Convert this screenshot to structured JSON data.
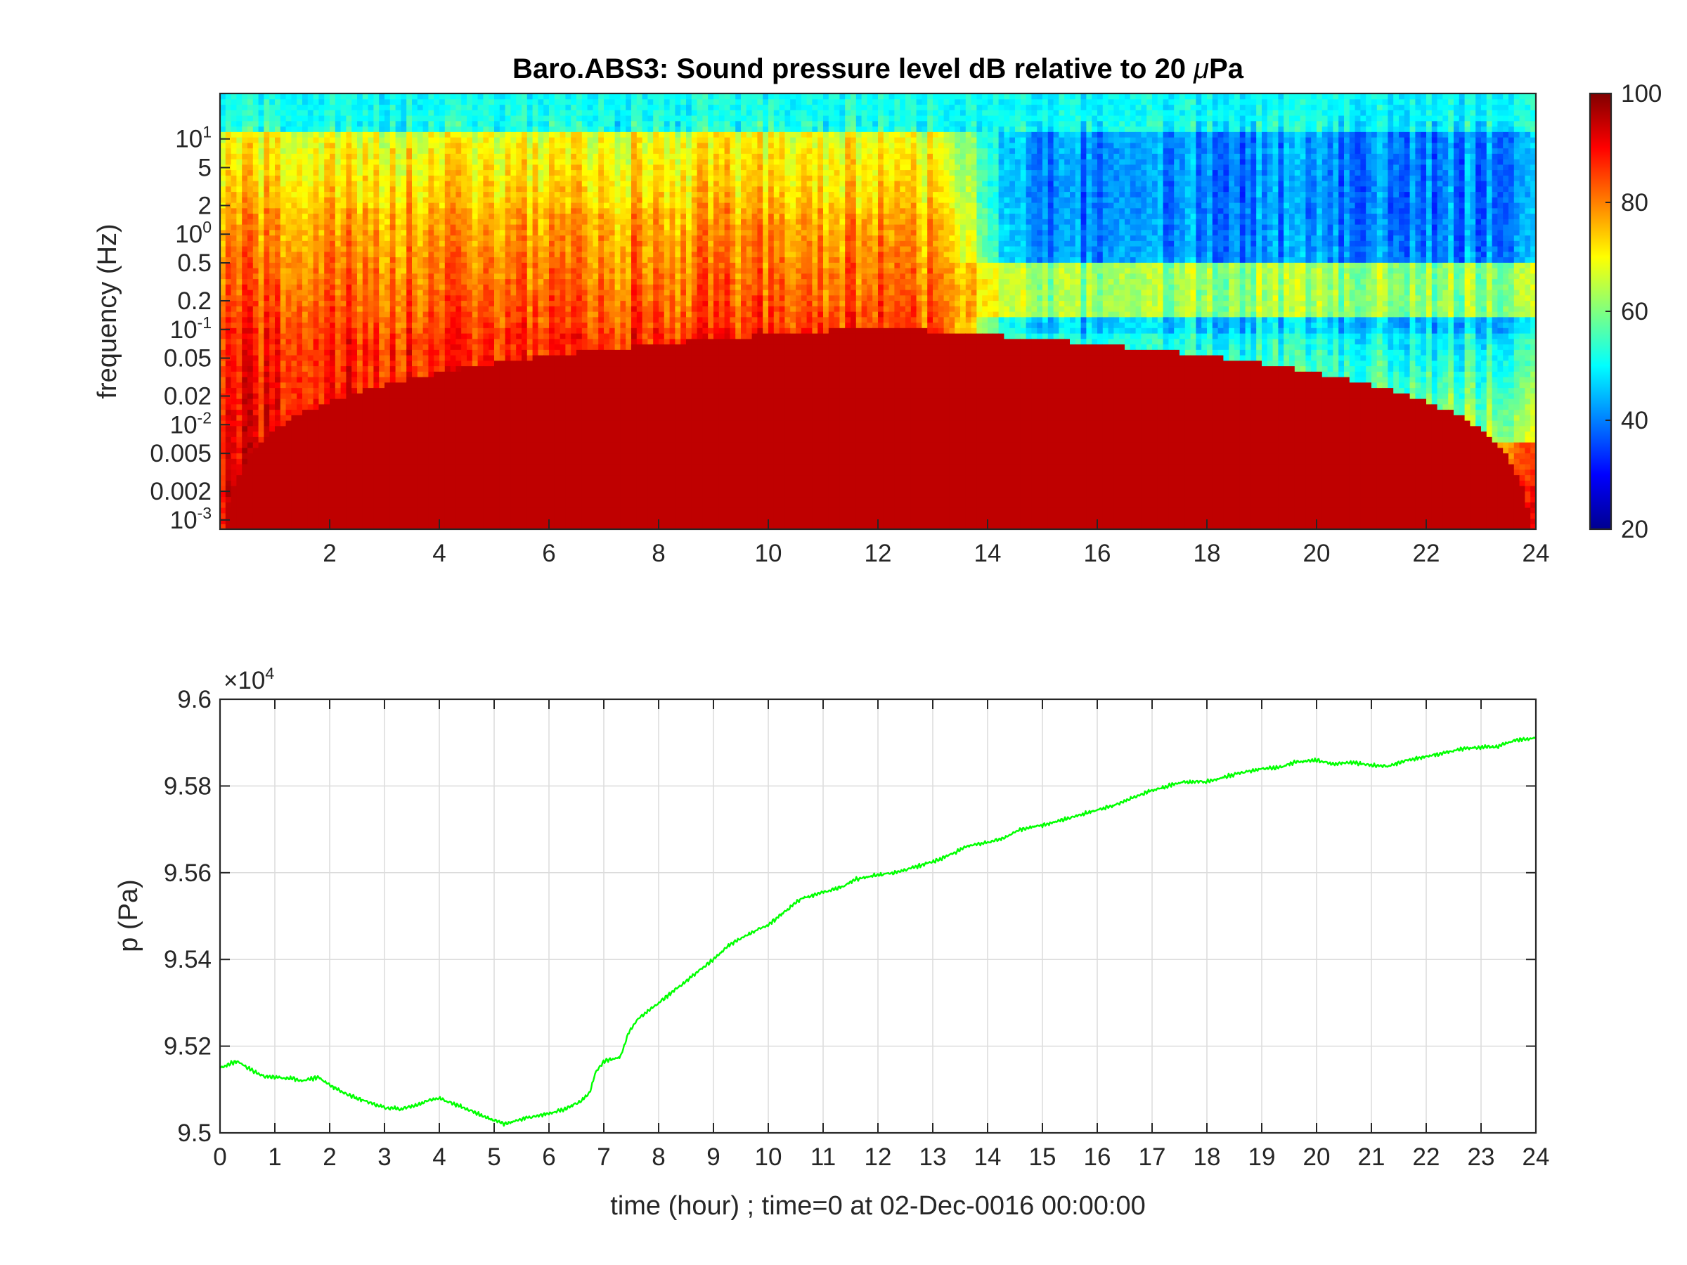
{
  "chart_data": [
    {
      "type": "heatmap",
      "title": "Baro.ABS3: Sound pressure level dB relative to 20 μPa",
      "title_parts": {
        "before": "Baro.ABS3: Sound pressure level dB relative to 20 ",
        "mu": "μ",
        "after": "Pa"
      },
      "xlabel": "",
      "ylabel": "frequency (Hz)",
      "xlim": [
        0,
        24
      ],
      "ylim": [
        0.0008,
        30
      ],
      "y_scale": "log",
      "x_ticks": [
        2,
        4,
        6,
        8,
        10,
        12,
        14,
        16,
        18,
        20,
        22,
        24
      ],
      "x_tick_labels": [
        "2",
        "4",
        "6",
        "8",
        "10",
        "12",
        "14",
        "16",
        "18",
        "20",
        "22",
        "24"
      ],
      "y_ticks": [
        {
          "value": 0.001,
          "base": "10",
          "exp": "-3"
        },
        {
          "value": 0.002,
          "label": "0.002"
        },
        {
          "value": 0.005,
          "label": "0.005"
        },
        {
          "value": 0.01,
          "base": "10",
          "exp": "-2"
        },
        {
          "value": 0.02,
          "label": "0.02"
        },
        {
          "value": 0.05,
          "label": "0.05"
        },
        {
          "value": 0.1,
          "base": "10",
          "exp": "-1"
        },
        {
          "value": 0.2,
          "label": "0.2"
        },
        {
          "value": 0.5,
          "label": "0.5"
        },
        {
          "value": 1,
          "base": "10",
          "exp": "0"
        },
        {
          "value": 2,
          "label": "2"
        },
        {
          "value": 5,
          "label": "5"
        },
        {
          "value": 10,
          "base": "10",
          "exp": "1"
        }
      ],
      "colormap": "jet",
      "clim": [
        20,
        100
      ],
      "colorbar_ticks": [
        20,
        40,
        60,
        80,
        100
      ],
      "colorbar_tick_labels": [
        "20",
        "40",
        "60",
        "80",
        "100"
      ],
      "colorbar_placement": "right",
      "regimes": [
        {
          "x_start": 0,
          "x_end": 13.8,
          "description": "high energy: 80-95 dB below 0.1 Hz, 65-75 dB near 1-5 Hz, about 50 dB above 10 Hz"
        },
        {
          "x_start": 13.8,
          "x_end": 24,
          "description": "quiet: about 40 dB in 0.5-5 Hz band, 60-65 dB band near 0.15-0.3 Hz, 75-90 dB below 0.005 Hz"
        }
      ]
    },
    {
      "type": "line",
      "title": "",
      "xlabel": "time (hour) ; time=0 at 02-Dec-0016 00:00:00",
      "ylabel": "p (Pa)",
      "xlim": [
        0,
        24
      ],
      "ylim": [
        95000,
        96000
      ],
      "y_multiplier": {
        "base": "10",
        "exp": "4"
      },
      "x_ticks": [
        0,
        1,
        2,
        3,
        4,
        5,
        6,
        7,
        8,
        9,
        10,
        11,
        12,
        13,
        14,
        15,
        16,
        17,
        18,
        19,
        20,
        21,
        22,
        23,
        24
      ],
      "x_tick_labels": [
        "0",
        "1",
        "2",
        "3",
        "4",
        "5",
        "6",
        "7",
        "8",
        "9",
        "10",
        "11",
        "12",
        "13",
        "14",
        "15",
        "16",
        "17",
        "18",
        "19",
        "20",
        "21",
        "22",
        "23",
        "24"
      ],
      "y_ticks": [
        95000,
        95200,
        95400,
        95600,
        95800,
        96000
      ],
      "y_tick_labels": [
        "9.5",
        "9.52",
        "9.54",
        "9.56",
        "9.58",
        "9.6"
      ],
      "grid": true,
      "series": [
        {
          "color": "#00ff00",
          "x": [
            0,
            0.3,
            0.5,
            0.8,
            1.0,
            1.3,
            1.5,
            1.8,
            2.0,
            2.3,
            2.6,
            3.0,
            3.3,
            3.6,
            3.8,
            4.0,
            4.3,
            4.6,
            5.0,
            5.2,
            5.5,
            5.8,
            6.0,
            6.3,
            6.6,
            6.75,
            6.85,
            7.0,
            7.3,
            7.45,
            7.6,
            8.0,
            8.5,
            9.0,
            9.3,
            9.6,
            10.0,
            10.3,
            10.6,
            11.0,
            11.3,
            11.6,
            12.0,
            12.3,
            12.6,
            13.0,
            13.3,
            13.6,
            14.0,
            14.3,
            14.6,
            15.0,
            15.3,
            15.6,
            16.0,
            16.3,
            16.6,
            17.0,
            17.3,
            17.6,
            18.0,
            18.3,
            18.6,
            19.0,
            19.3,
            19.6,
            20.0,
            20.3,
            20.6,
            21.0,
            21.3,
            21.6,
            22.0,
            22.3,
            22.6,
            23.0,
            23.3,
            23.6,
            24.0
          ],
          "y": [
            95150,
            95165,
            95150,
            95130,
            95128,
            95126,
            95120,
            95128,
            95110,
            95090,
            95075,
            95058,
            95055,
            95065,
            95075,
            95080,
            95065,
            95050,
            95028,
            95020,
            95032,
            95040,
            95045,
            95055,
            95075,
            95095,
            95140,
            95165,
            95175,
            95230,
            95260,
            95300,
            95350,
            95400,
            95435,
            95455,
            95480,
            95510,
            95540,
            95555,
            95565,
            95585,
            95595,
            95600,
            95610,
            95625,
            95640,
            95660,
            95670,
            95680,
            95700,
            95710,
            95720,
            95730,
            95745,
            95755,
            95770,
            95790,
            95800,
            95810,
            95810,
            95820,
            95830,
            95840,
            95842,
            95855,
            95860,
            95850,
            95855,
            95848,
            95845,
            95858,
            95868,
            95875,
            95885,
            95890,
            95890,
            95905,
            95910
          ]
        }
      ]
    }
  ]
}
